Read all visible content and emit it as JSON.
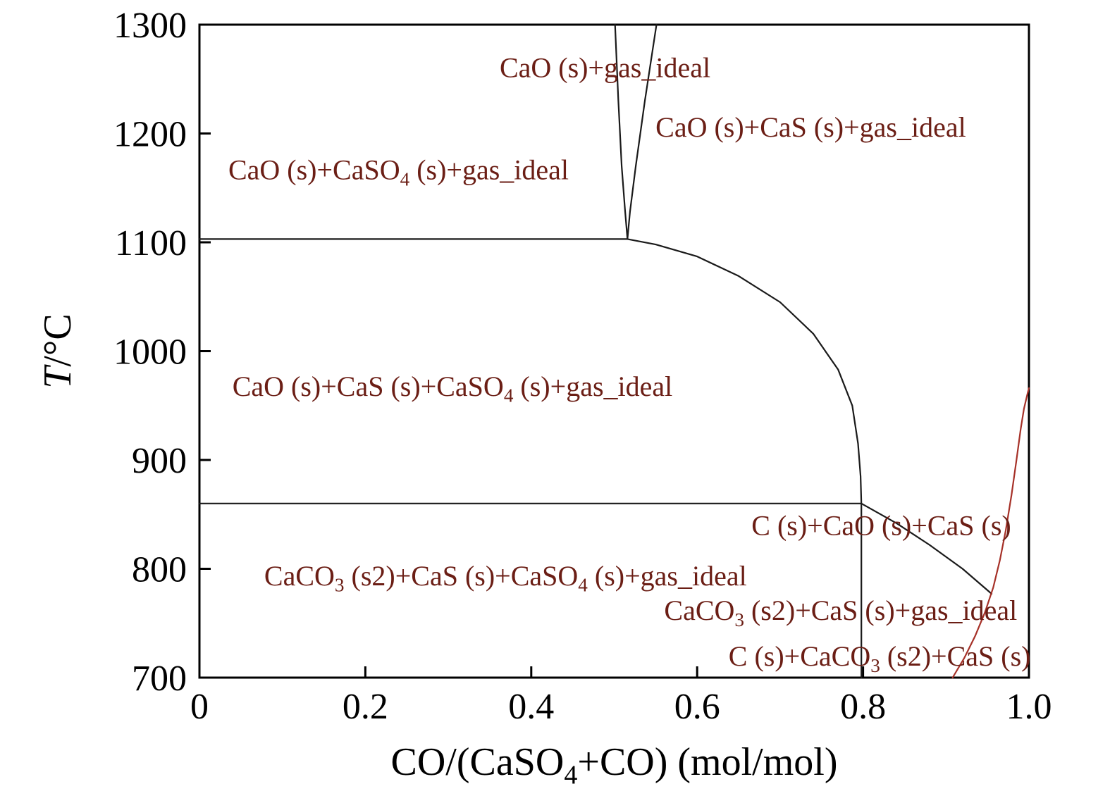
{
  "chart_data": {
    "type": "line",
    "subtype": "phase-diagram",
    "title": "",
    "xlabel_text": "CO/(CaSO₄+CO) (mol/mol)",
    "xlabel_parts": [
      {
        "text": "CO/(CaSO"
      },
      {
        "sub": "4"
      },
      {
        "text": "+CO) (mol/mol)"
      }
    ],
    "ylabel_text": "T/°C",
    "ylabel_parts": [
      {
        "text": "T",
        "italic": true
      },
      {
        "text": "/°C"
      }
    ],
    "xlim": [
      0,
      1.0
    ],
    "ylim": [
      700,
      1300
    ],
    "xticks": [
      0,
      0.2,
      0.4,
      0.6,
      0.8,
      1.0
    ],
    "xtick_labels": [
      "0",
      "0.2",
      "0.4",
      "0.6",
      "0.8",
      "1.0"
    ],
    "yticks": [
      700,
      800,
      900,
      1000,
      1100,
      1200,
      1300
    ],
    "ytick_labels": [
      "700",
      "800",
      "900",
      "1000",
      "1100",
      "1200",
      "1300"
    ],
    "grid": false,
    "legend": "none",
    "colors": {
      "axis": "#000000",
      "boundary_black": "#1a1a1a",
      "boundary_red": "#a63128",
      "region_label": "#6b1e15"
    },
    "boundaries": [
      {
        "name": "horizontal-1103C",
        "color": "#1a1a1a",
        "points": [
          [
            0,
            1103
          ],
          [
            0.516,
            1103
          ]
        ]
      },
      {
        "name": "upper-left-branch",
        "color": "#1a1a1a",
        "points": [
          [
            0.501,
            1300
          ],
          [
            0.505,
            1230
          ],
          [
            0.509,
            1170
          ],
          [
            0.513,
            1130
          ],
          [
            0.516,
            1103
          ]
        ]
      },
      {
        "name": "upper-right-branch",
        "color": "#1a1a1a",
        "points": [
          [
            0.551,
            1300
          ],
          [
            0.537,
            1230
          ],
          [
            0.526,
            1170
          ],
          [
            0.519,
            1128
          ],
          [
            0.516,
            1103
          ]
        ]
      },
      {
        "name": "sweep-curve-1103-to-860",
        "color": "#1a1a1a",
        "points": [
          [
            0.516,
            1103
          ],
          [
            0.55,
            1098
          ],
          [
            0.6,
            1087
          ],
          [
            0.65,
            1069
          ],
          [
            0.7,
            1045
          ],
          [
            0.74,
            1016
          ],
          [
            0.77,
            983
          ],
          [
            0.787,
            950
          ],
          [
            0.794,
            915
          ],
          [
            0.797,
            885
          ],
          [
            0.798,
            860
          ]
        ]
      },
      {
        "name": "horizontal-860C",
        "color": "#1a1a1a",
        "points": [
          [
            0,
            860
          ],
          [
            0.798,
            860
          ]
        ]
      },
      {
        "name": "vertical-0.8",
        "color": "#1a1a1a",
        "points": [
          [
            0.798,
            860
          ],
          [
            0.798,
            700
          ]
        ]
      },
      {
        "name": "diagonal-860-to-red",
        "color": "#1a1a1a",
        "points": [
          [
            0.798,
            860
          ],
          [
            0.84,
            842
          ],
          [
            0.88,
            822
          ],
          [
            0.92,
            800
          ],
          [
            0.955,
            777
          ]
        ]
      },
      {
        "name": "red-curve",
        "color": "#a63128",
        "points": [
          [
            0.908,
            700
          ],
          [
            0.922,
            718
          ],
          [
            0.935,
            738
          ],
          [
            0.947,
            760
          ],
          [
            0.957,
            783
          ],
          [
            0.965,
            808
          ],
          [
            0.972,
            835
          ],
          [
            0.979,
            868
          ],
          [
            0.985,
            900
          ],
          [
            0.99,
            928
          ],
          [
            0.994,
            947
          ],
          [
            0.998,
            960
          ],
          [
            1.0,
            966
          ]
        ]
      }
    ],
    "region_labels": [
      {
        "text": "CaO (s)+gas_ideal",
        "x": 0.489,
        "T": 1261,
        "parts": [
          {
            "text": "CaO (s)+gas_ideal"
          }
        ]
      },
      {
        "text": "CaO (s)+CaS (s)+gas_ideal",
        "x": 0.737,
        "T": 1206,
        "parts": [
          {
            "text": "CaO (s)+CaS (s)+gas_ideal"
          }
        ]
      },
      {
        "text": "CaO (s)+CaSO₄ (s)+gas_ideal",
        "x": 0.24,
        "T": 1167,
        "parts": [
          {
            "text": "CaO (s)+CaSO"
          },
          {
            "sub": "4"
          },
          {
            "text": " (s)+gas_ideal"
          }
        ]
      },
      {
        "text": "CaO (s)+CaS (s)+CaSO₄ (s)+gas_ideal",
        "x": 0.305,
        "T": 968,
        "parts": [
          {
            "text": "CaO (s)+CaS (s)+CaSO"
          },
          {
            "sub": "4"
          },
          {
            "text": " (s)+gas_ideal"
          }
        ]
      },
      {
        "text": "C (s)+CaO (s)+CaS (s)",
        "x": 0.822,
        "T": 840,
        "parts": [
          {
            "text": "C (s)+CaO (s)+CaS (s)"
          }
        ]
      },
      {
        "text": "CaCO₃ (s2)+CaS (s)+CaSO₄ (s)+gas_ideal",
        "x": 0.369,
        "T": 794,
        "parts": [
          {
            "text": "CaCO"
          },
          {
            "sub": "3"
          },
          {
            "text": " (s2)+CaS (s)+CaSO"
          },
          {
            "sub": "4"
          },
          {
            "text": " (s)+gas_ideal"
          }
        ]
      },
      {
        "text": "CaCO₃ (s2)+CaS (s)+gas_ideal",
        "x": 0.773,
        "T": 762,
        "parts": [
          {
            "text": "CaCO"
          },
          {
            "sub": "3"
          },
          {
            "text": " (s2)+CaS (s)+gas_ideal"
          }
        ]
      },
      {
        "text": "C (s)+CaCO₃ (s2)+CaS (s)",
        "x": 0.82,
        "T": 720,
        "parts": [
          {
            "text": "C (s)+CaCO"
          },
          {
            "sub": "3"
          },
          {
            "text": " (s2)+CaS (s)"
          }
        ]
      }
    ]
  }
}
